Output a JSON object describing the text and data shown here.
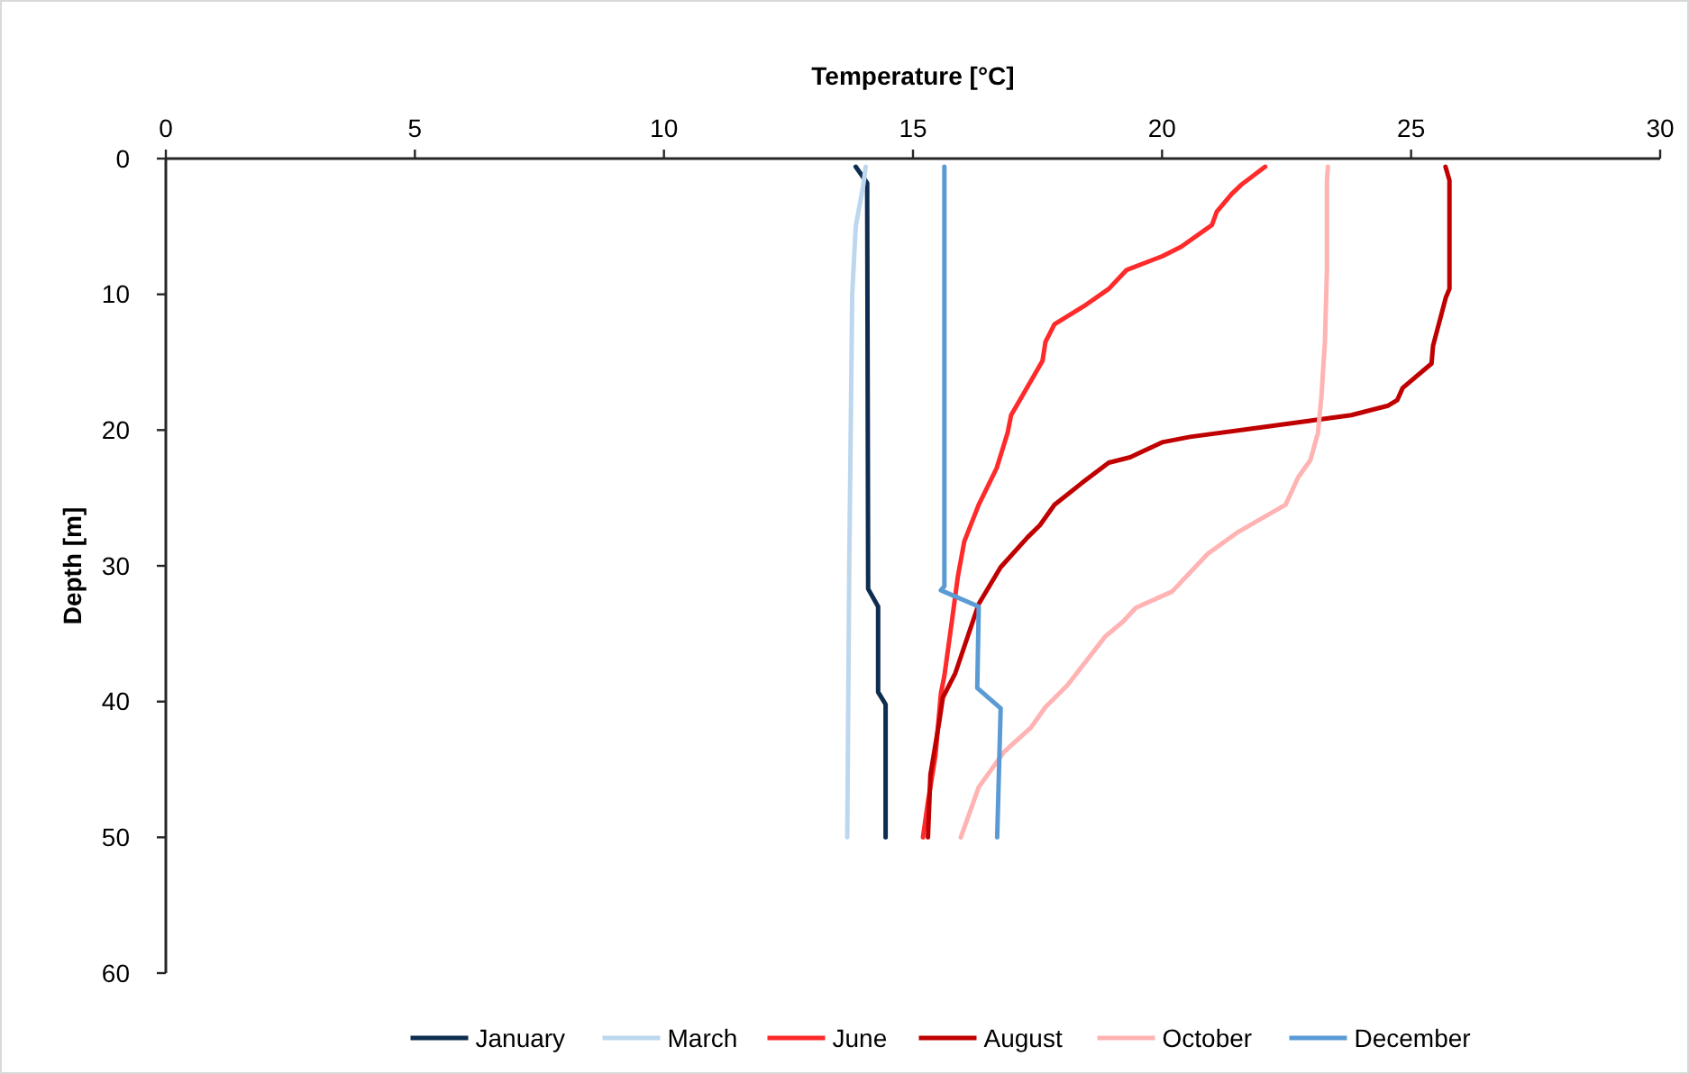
{
  "chart_data": {
    "type": "line",
    "xlabel": "Temperature [°C]",
    "ylabel": "Depth [m]",
    "xlim": [
      0,
      30
    ],
    "xticks": [
      0,
      5,
      10,
      15,
      20,
      25,
      30
    ],
    "ylim": [
      60,
      0
    ],
    "yticks": [
      0,
      10,
      20,
      30,
      40,
      50,
      60
    ],
    "grid": false,
    "legend": "bottom",
    "marker": "none",
    "line_style": "solid",
    "series": [
      {
        "name": "January",
        "color": "#0e2d50",
        "x": [
          13.85,
          14.08,
          14.1,
          14.3,
          14.3,
          14.45,
          14.45
        ],
        "values": [
          0.6,
          1.8,
          31.7,
          33,
          39.3,
          40.2,
          50
        ]
      },
      {
        "name": "March",
        "color": "#bdd7ee",
        "x": [
          14.05,
          14.0,
          13.85,
          13.78,
          13.75,
          13.72,
          13.7,
          13.68
        ],
        "values": [
          0.6,
          2,
          5,
          10,
          20,
          30,
          40,
          50
        ]
      },
      {
        "name": "June",
        "color": "#ff2a2a",
        "x": [
          22.07,
          21.6,
          21.4,
          21.1,
          21.0,
          20.38,
          20.0,
          19.29,
          18.93,
          18.42,
          17.84,
          17.66,
          17.6,
          17.19,
          16.97,
          16.9,
          16.68,
          16.32,
          16.03,
          15.9,
          15.78,
          15.63,
          15.56,
          15.45,
          15.3,
          15.2
        ],
        "values": [
          0.6,
          1.9,
          2.6,
          3.9,
          4.9,
          6.5,
          7.2,
          8.2,
          9.6,
          10.9,
          12.2,
          13.5,
          14.9,
          17.5,
          18.9,
          20.2,
          22.8,
          25.5,
          28.2,
          30.8,
          34.1,
          38.1,
          39.4,
          44,
          47.4,
          50
        ]
      },
      {
        "name": "August",
        "color": "#c00000",
        "x": [
          25.69,
          25.77,
          25.77,
          25.7,
          25.44,
          25.41,
          24.83,
          24.72,
          24.54,
          23.8,
          22.0,
          20.56,
          20.0,
          19.36,
          18.93,
          18.39,
          17.84,
          17.55,
          17.3,
          16.76,
          16.32,
          15.85,
          15.6,
          15.53,
          15.35,
          15.3
        ],
        "values": [
          0.6,
          1.6,
          9.6,
          10.2,
          13.8,
          15.1,
          16.9,
          17.8,
          18.2,
          18.9,
          19.8,
          20.5,
          20.9,
          22,
          22.4,
          23.9,
          25.5,
          27.0,
          27.9,
          30.1,
          32.8,
          37.9,
          39.7,
          41.4,
          45.4,
          50
        ]
      },
      {
        "name": "October",
        "color": "#ffb3b3",
        "x": [
          23.33,
          23.31,
          23.31,
          23.27,
          23.2,
          23.13,
          22.98,
          22.73,
          22.48,
          21.53,
          20.92,
          20.2,
          19.47,
          19.22,
          18.86,
          18.1,
          17.66,
          17.37,
          16.83,
          16.32,
          15.96
        ],
        "values": [
          0.6,
          1.6,
          8.2,
          13.5,
          17.5,
          20.2,
          22.2,
          23.5,
          25.5,
          27.5,
          29.1,
          31.9,
          33.1,
          34.1,
          35.2,
          38.8,
          40.4,
          41.9,
          43.7,
          46.3,
          50
        ]
      },
      {
        "name": "December",
        "color": "#5b9bd5",
        "x": [
          15.63,
          15.63,
          15.56,
          16.32,
          16.29,
          16.76,
          16.69
        ],
        "values": [
          0.6,
          31.5,
          31.8,
          33,
          39,
          40.5,
          50
        ]
      }
    ]
  }
}
